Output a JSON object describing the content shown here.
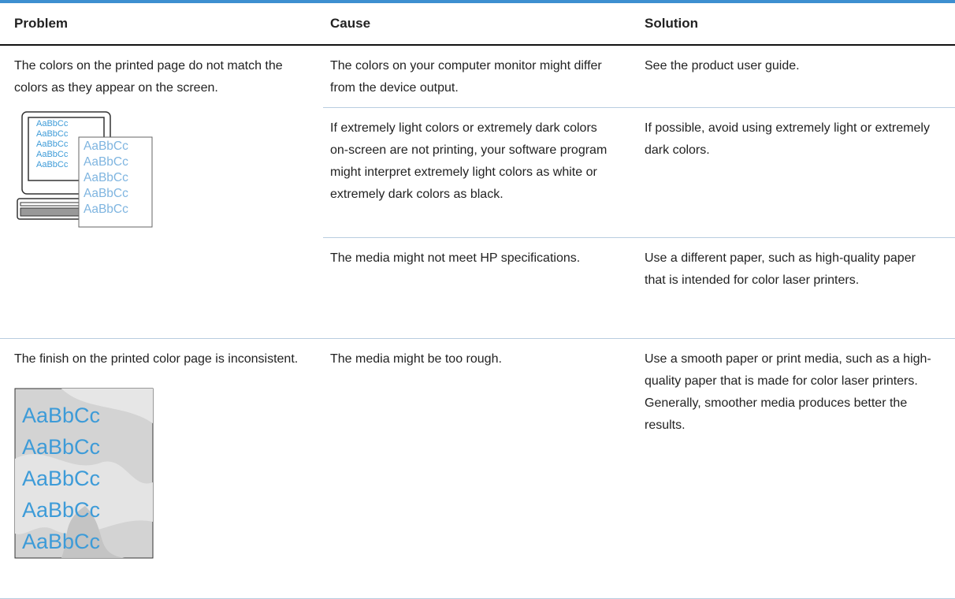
{
  "header": {
    "problem": "Problem",
    "cause": "Cause",
    "solution": "Solution"
  },
  "rows": [
    {
      "problem": "The colors on the printed page do not match the colors as they appear on the screen.",
      "illustration": {
        "screen": [
          "AaBbCc",
          "AaBbCc",
          "AaBbCc",
          "AaBbCc",
          "AaBbCc"
        ],
        "page": [
          "AaBbCc",
          "AaBbCc",
          "AaBbCc",
          "AaBbCc",
          "AaBbCc"
        ]
      },
      "items": [
        {
          "cause": "The colors on your computer monitor might differ from the device output.",
          "solution": "See the product user guide."
        },
        {
          "cause": "If extremely light colors or extremely dark colors on-screen are not printing, your software program might interpret extremely light colors as white or extremely dark colors as black.",
          "solution": "If possible, avoid using extremely light or extremely dark colors."
        },
        {
          "cause": "The media might not meet HP specifications.",
          "solution": "Use a different paper, such as high-quality paper that is intended for color laser printers."
        }
      ]
    },
    {
      "problem": "The finish on the printed color page is inconsistent.",
      "illustration": {
        "page": [
          "AaBbCc",
          "AaBbCc",
          "AaBbCc",
          "AaBbCc",
          "AaBbCc"
        ]
      },
      "items": [
        {
          "cause": "The media might be too rough.",
          "solution": "Use a smooth paper or print media, such as a high-quality paper that is made for color laser printers. Generally, smoother media produces better the results."
        }
      ]
    }
  ]
}
